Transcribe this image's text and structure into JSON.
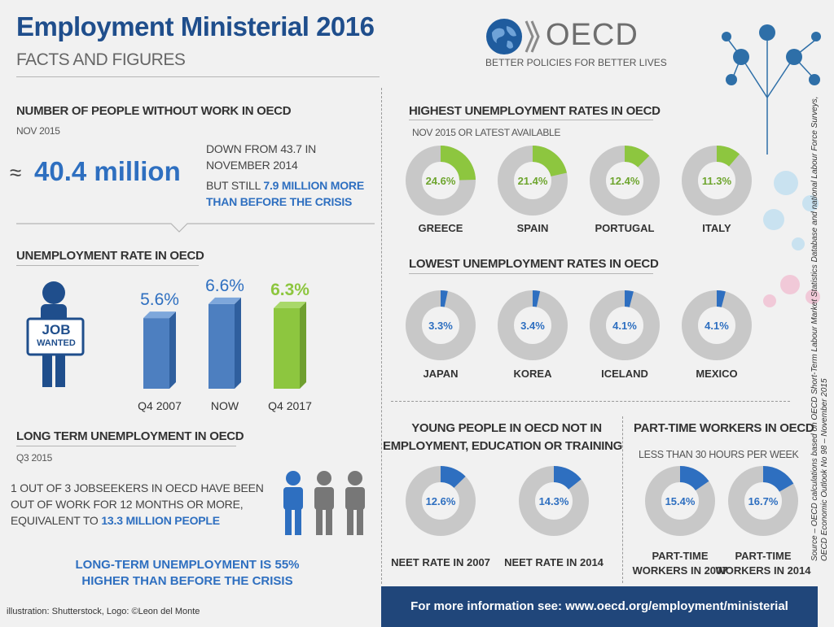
{
  "header": {
    "title": "Employment Ministerial 2016",
    "subtitle": "FACTS AND FIGURES",
    "logo_text": "OECD",
    "logo_tagline": "BETTER POLICIES FOR BETTER LIVES"
  },
  "without_work": {
    "heading": "NUMBER OF PEOPLE WITHOUT WORK IN OECD",
    "date": "NOV 2015",
    "approx": "≈",
    "value": "40.4 million",
    "down_from": "DOWN FROM 43.7 IN NOVEMBER 2014",
    "but_still": "BUT STILL",
    "more_than": "7.9 MILLION MORE THAN BEFORE THE CRISIS"
  },
  "rate": {
    "heading": "UNEMPLOYMENT RATE IN OECD",
    "sign_line1": "JOB",
    "sign_line2": "WANTED",
    "bars": [
      {
        "label": "Q4 2007",
        "value": 5.6,
        "text": "5.6%"
      },
      {
        "label": "NOW",
        "value": 6.6,
        "text": "6.6%"
      },
      {
        "label": "Q4 2017",
        "value": 6.3,
        "text": "6.3%"
      }
    ]
  },
  "long_term": {
    "heading": "LONG TERM UNEMPLOYMENT IN OECD",
    "date": "Q3 2015",
    "text": "1 OUT OF 3 JOBSEEKERS IN OECD HAVE BEEN OUT OF WORK FOR 12 MONTHS OR MORE, EQUIVALENT TO",
    "highlight": "13.3 MILLION PEOPLE",
    "conclusion_line1": "LONG-TERM UNEMPLOYMENT IS 55%",
    "conclusion_line2": "HIGHER THAN BEFORE THE CRISIS"
  },
  "highest": {
    "heading": "HIGHEST UNEMPLOYMENT RATES IN OECD",
    "date": "NOV 2015 OR LATEST AVAILABLE",
    "items": [
      {
        "country": "GREECE",
        "value": 24.6,
        "text": "24.6%"
      },
      {
        "country": "SPAIN",
        "value": 21.4,
        "text": "21.4%"
      },
      {
        "country": "PORTUGAL",
        "value": 12.4,
        "text": "12.4%"
      },
      {
        "country": "ITALY",
        "value": 11.3,
        "text": "11.3%"
      }
    ]
  },
  "lowest": {
    "heading": "LOWEST UNEMPLOYMENT RATES IN OECD",
    "items": [
      {
        "country": "JAPAN",
        "value": 3.3,
        "text": "3.3%"
      },
      {
        "country": "KOREA",
        "value": 3.4,
        "text": "3.4%"
      },
      {
        "country": "ICELAND",
        "value": 4.1,
        "text": "4.1%"
      },
      {
        "country": "MEXICO",
        "value": 4.1,
        "text": "4.1%"
      }
    ]
  },
  "neet": {
    "heading_line1": "YOUNG PEOPLE IN OECD NOT IN",
    "heading_line2": "EMPLOYMENT, EDUCATION OR TRAINING",
    "items": [
      {
        "label": "NEET RATE IN 2007",
        "value": 12.6,
        "text": "12.6%"
      },
      {
        "label": "NEET RATE IN 2014",
        "value": 14.3,
        "text": "14.3%"
      }
    ]
  },
  "part_time": {
    "heading": "PART-TIME WORKERS IN OECD",
    "sub": "LESS  THAN 30 HOURS PER WEEK",
    "items": [
      {
        "label_line1": "PART-TIME",
        "label_line2": "WORKERS IN 2007",
        "value": 15.4,
        "text": "15.4%"
      },
      {
        "label_line1": "PART-TIME",
        "label_line2": "WORKERS IN 2014",
        "value": 16.7,
        "text": "16.7%"
      }
    ]
  },
  "source": {
    "line1": "Source – OECD calculations based on OECD Short-Term Labour Market Statistics Database and national Labour Force Surveys,",
    "line2": "OECD Economic Outlook No 98 – November 2015"
  },
  "credits": "illustration: Shutterstock, Logo: ©Leon del Monte",
  "footer": "For more information see: www.oecd.org/employment/ministerial",
  "colors": {
    "brand_blue": "#1f4e8c",
    "accent_blue": "#2e6fc0",
    "green": "#8dc63f",
    "donut_grey": "#c8c8c8",
    "footer_blue": "#20467a"
  }
}
